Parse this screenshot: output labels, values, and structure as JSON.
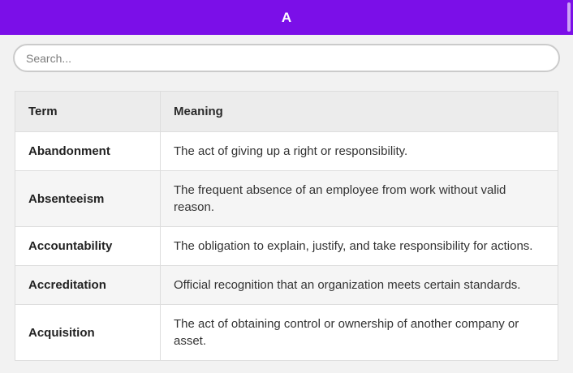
{
  "header": {
    "title": "A"
  },
  "search": {
    "placeholder": "Search...",
    "value": ""
  },
  "table": {
    "columns": {
      "term": "Term",
      "meaning": "Meaning"
    },
    "rows": [
      {
        "term": "Abandonment",
        "meaning": "The act of giving up a right or responsibility."
      },
      {
        "term": "Absenteeism",
        "meaning": "The frequent absence of an employee from work without valid reason."
      },
      {
        "term": "Accountability",
        "meaning": "The obligation to explain, justify, and take responsibility for actions."
      },
      {
        "term": "Accreditation",
        "meaning": "Official recognition that an organization meets certain standards."
      },
      {
        "term": "Acquisition",
        "meaning": "The act of obtaining control or ownership of another company or asset."
      }
    ]
  },
  "colors": {
    "accent": "#7b0fe8",
    "page_bg": "#f2f2f2",
    "thead_bg": "#ececec",
    "stripe_bg": "#f5f5f5",
    "border": "#dddddd"
  }
}
